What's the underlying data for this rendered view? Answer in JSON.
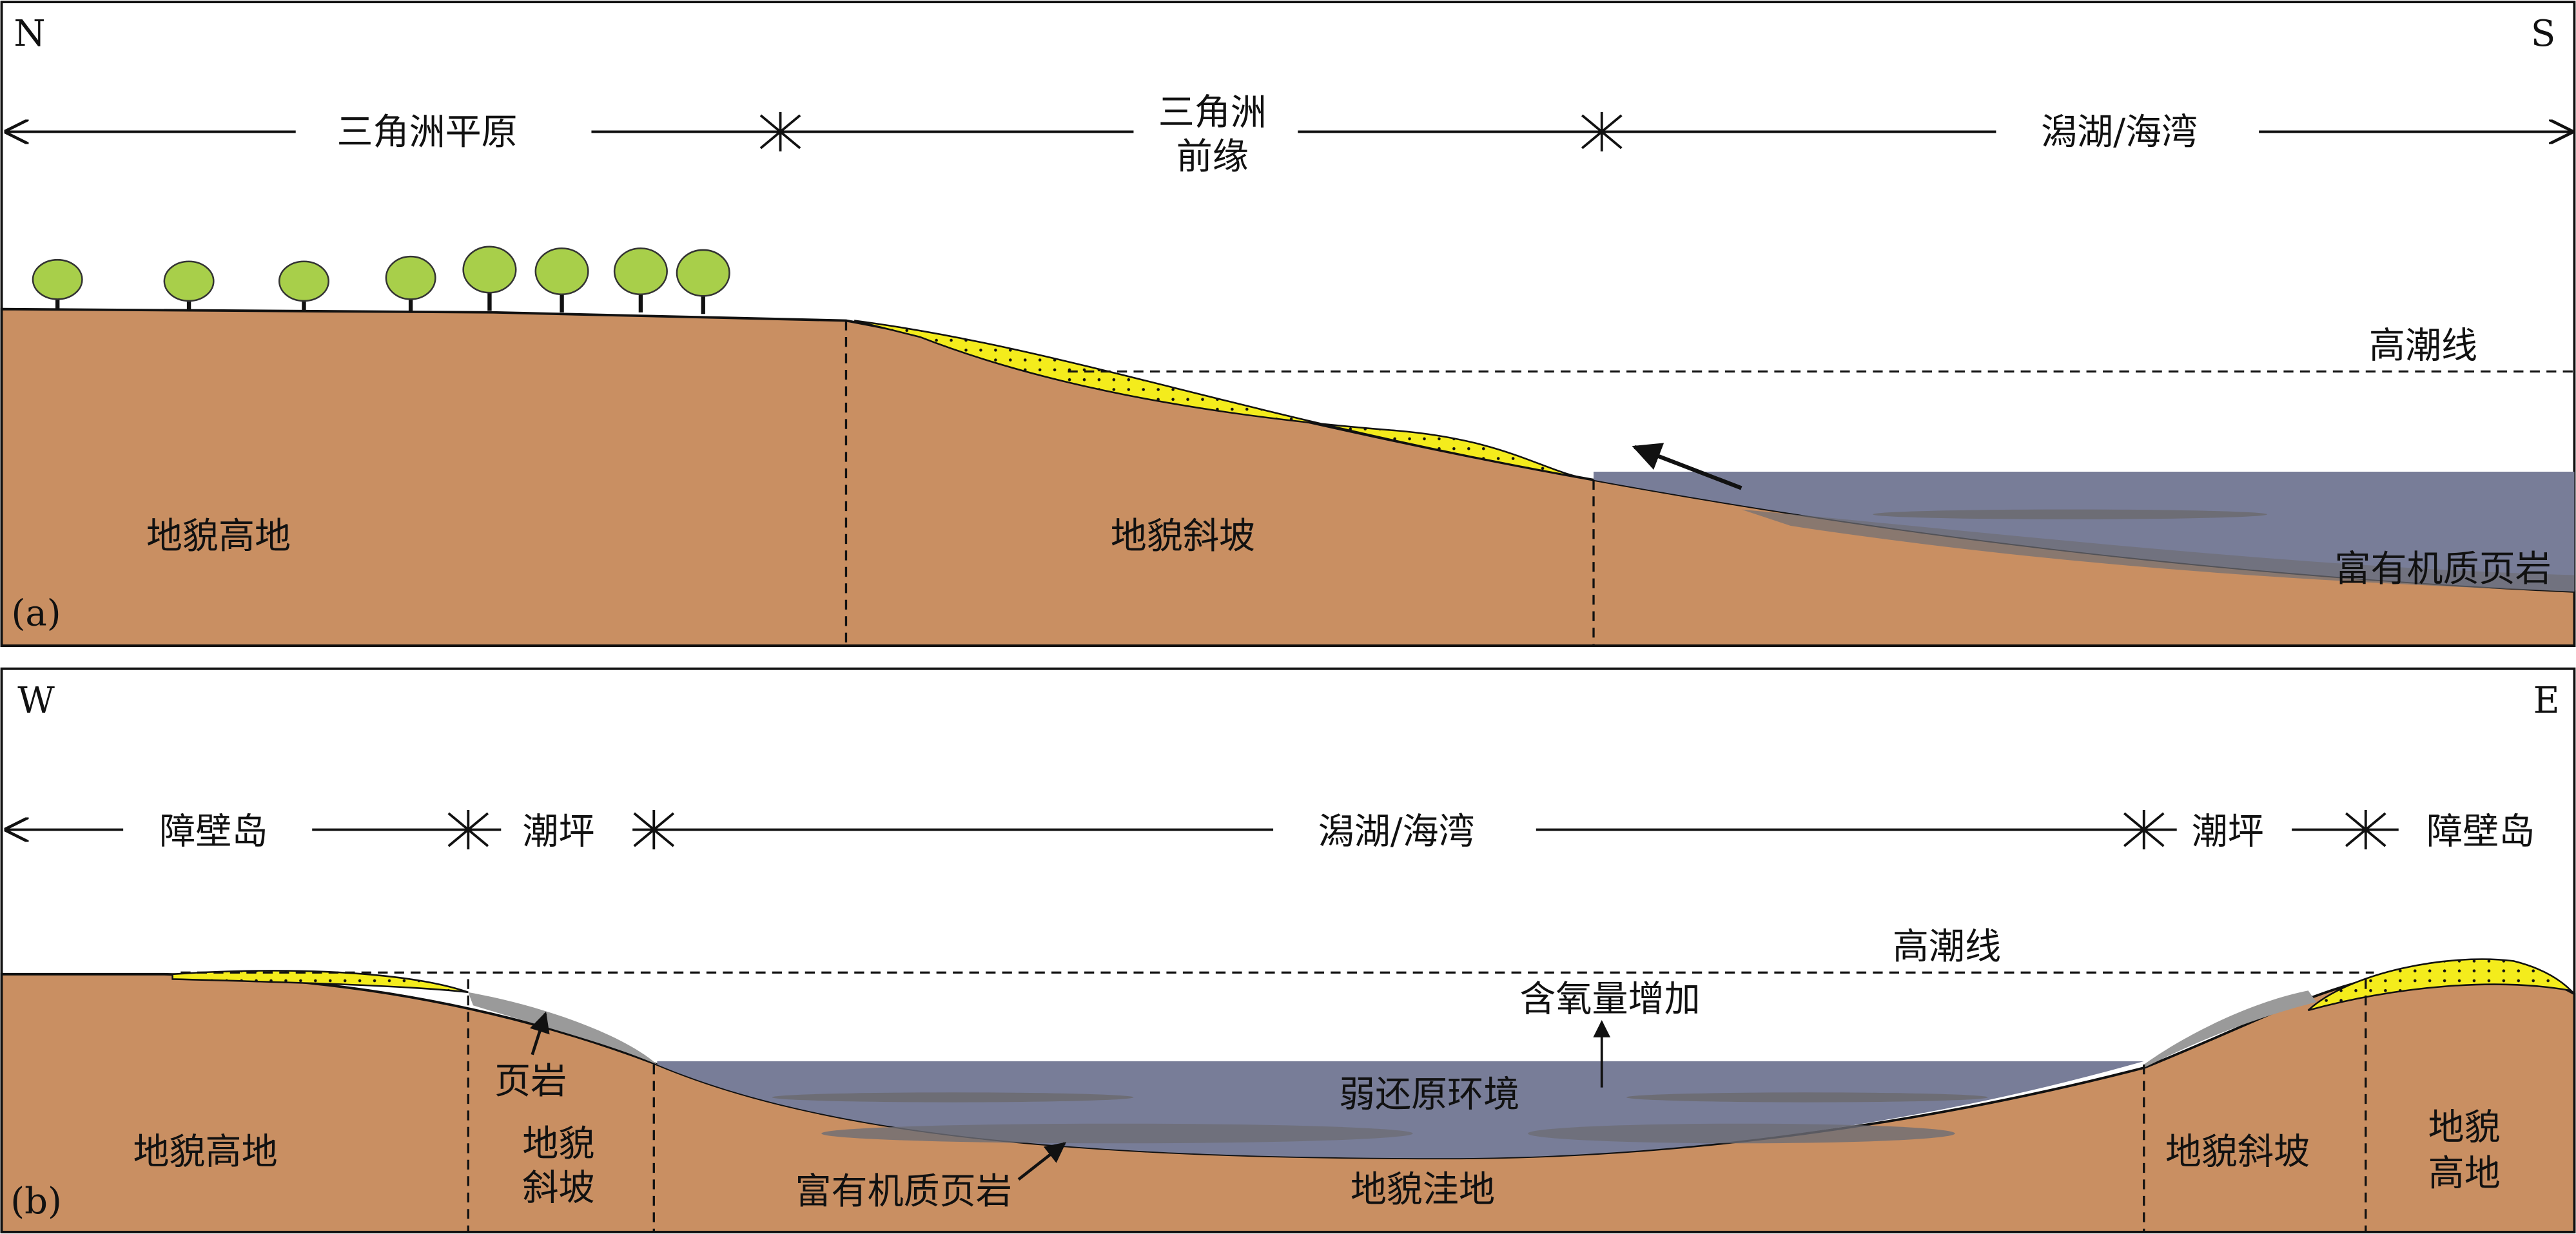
{
  "panel_a": {
    "label": "(a)",
    "left_direction": "N",
    "right_direction": "S",
    "zones": [
      "三角洲平原",
      [
        "三角洲",
        "前缘"
      ],
      "潟湖/海湾"
    ],
    "high_tide": "高潮线",
    "units": [
      "地貌高地",
      "地貌斜坡"
    ],
    "shale": "富有机质页岩"
  },
  "panel_b": {
    "label": "(b)",
    "left_direction": "W",
    "right_direction": "E",
    "zones": [
      "障壁岛",
      "潮坪",
      "潟湖/海湾",
      "潮坪",
      "障壁岛"
    ],
    "high_tide": "高潮线",
    "oxygen": "含氧量增加",
    "environment": "弱还原环境",
    "shale": "页岩",
    "units": [
      "地貌高地",
      [
        "地貌",
        "斜坡"
      ],
      "地貌洼地",
      "地貌斜坡",
      [
        "地貌",
        "高地"
      ]
    ],
    "organic_shale": "富有机质页岩"
  }
}
